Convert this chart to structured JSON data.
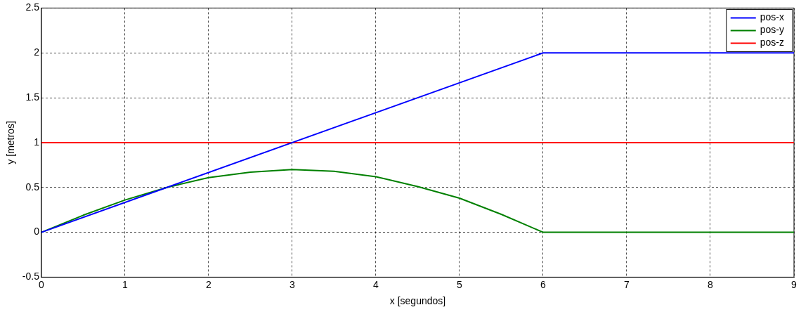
{
  "chart_data": {
    "type": "line",
    "xlabel": "x [segundos]",
    "ylabel": "y [metros]",
    "xlim": [
      0,
      9
    ],
    "xticks": [
      0,
      1,
      2,
      3,
      4,
      5,
      6,
      7,
      8,
      9
    ],
    "ylim": [
      -0.5,
      2.5
    ],
    "yticks": [
      -0.5,
      0,
      0.5,
      1,
      1.5,
      2,
      2.5
    ],
    "grid": true,
    "legend": "top right",
    "marker": "none",
    "line_style": "solid",
    "series": [
      {
        "name": "pos-x",
        "color": "#0000ff",
        "x": [
          0,
          6,
          9
        ],
        "values": [
          0,
          2,
          2
        ]
      },
      {
        "name": "pos-y",
        "color": "#008000",
        "x": [
          0,
          0.5,
          1,
          1.5,
          2,
          2.5,
          3,
          3.5,
          4,
          4.5,
          5,
          5.5,
          6,
          9
        ],
        "values": [
          0,
          0.19,
          0.36,
          0.5,
          0.61,
          0.67,
          0.7,
          0.68,
          0.62,
          0.51,
          0.38,
          0.2,
          0,
          0
        ]
      },
      {
        "name": "pos-z",
        "color": "#ff0000",
        "x": [
          0,
          1,
          2,
          3,
          4,
          5,
          6,
          7,
          8,
          9
        ],
        "values": [
          1,
          1,
          1,
          1,
          1,
          1,
          1,
          1,
          1,
          1
        ]
      }
    ]
  }
}
